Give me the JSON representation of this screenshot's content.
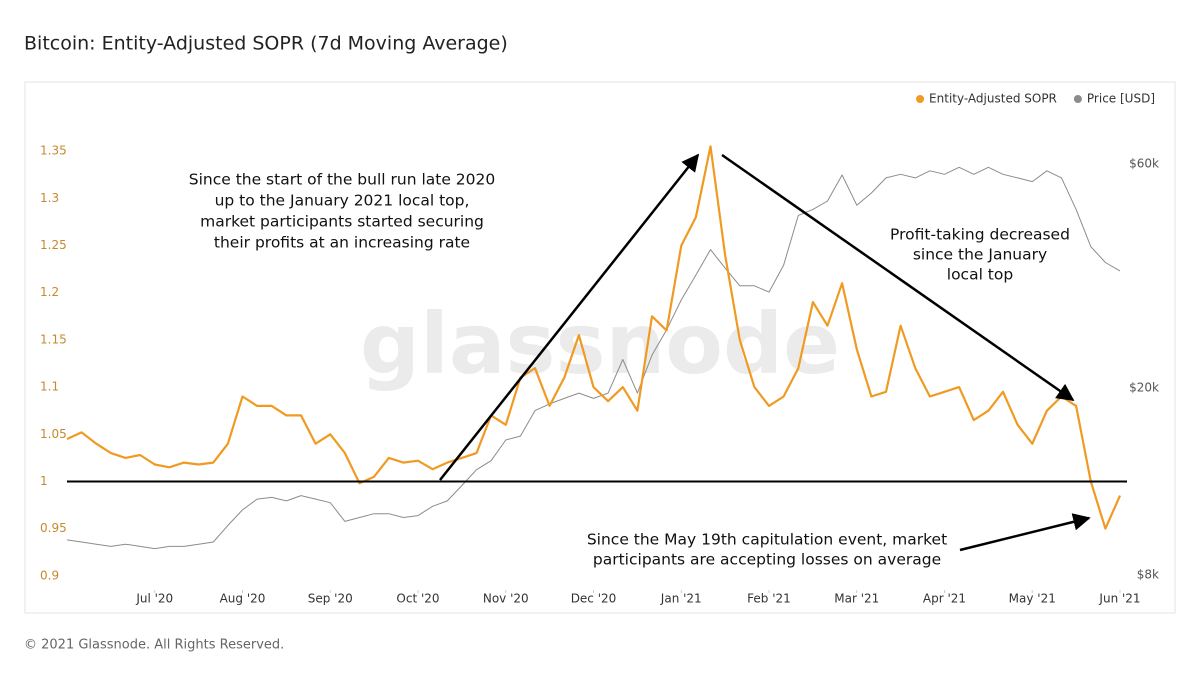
{
  "chart_data": {
    "type": "line",
    "title": "Bitcoin: Entity-Adjusted SOPR (7d Moving Average)",
    "footer": "© 2021 Glassnode. All Rights Reserved.",
    "watermark": "glassnode",
    "categories": [
      null,
      null,
      null,
      null,
      null,
      null,
      "Jul '20",
      null,
      null,
      null,
      null,
      null,
      "Aug '20",
      null,
      null,
      null,
      null,
      null,
      "Sep '20",
      null,
      null,
      null,
      null,
      null,
      "Oct '20",
      null,
      null,
      null,
      null,
      null,
      "Nov '20",
      null,
      null,
      null,
      null,
      null,
      "Dec '20",
      null,
      null,
      null,
      null,
      null,
      "Jan '21",
      null,
      null,
      null,
      null,
      null,
      "Feb '21",
      null,
      null,
      null,
      null,
      null,
      "Mar '21",
      null,
      null,
      null,
      null,
      null,
      "Apr '21",
      null,
      null,
      null,
      null,
      null,
      "May '21",
      null,
      null,
      null,
      null,
      null,
      "Jun '21"
    ],
    "series": [
      {
        "name": "Entity-Adjusted SOPR",
        "color": "#f09a22",
        "axis": "y",
        "values": [
          1.045,
          1.052,
          1.04,
          1.03,
          1.025,
          1.028,
          1.018,
          1.015,
          1.02,
          1.018,
          1.02,
          1.04,
          1.09,
          1.08,
          1.08,
          1.07,
          1.07,
          1.04,
          1.05,
          1.03,
          0.998,
          1.005,
          1.025,
          1.02,
          1.022,
          1.013,
          1.02,
          1.025,
          1.03,
          1.07,
          1.06,
          1.11,
          1.12,
          1.08,
          1.11,
          1.155,
          1.1,
          1.085,
          1.1,
          1.075,
          1.175,
          1.16,
          1.25,
          1.28,
          1.355,
          1.24,
          1.15,
          1.1,
          1.08,
          1.09,
          1.12,
          1.19,
          1.165,
          1.21,
          1.14,
          1.09,
          1.095,
          1.165,
          1.12,
          1.09,
          1.095,
          1.1,
          1.065,
          1.075,
          1.095,
          1.06,
          1.04,
          1.075,
          1.09,
          1.08,
          1.0,
          0.95,
          0.985
        ]
      },
      {
        "name": "Price [USD]",
        "color": "#8c8c8c",
        "axis": "y2",
        "values": [
          9500,
          9400,
          9300,
          9200,
          9300,
          9200,
          9100,
          9200,
          9200,
          9300,
          9400,
          10200,
          11000,
          11600,
          11700,
          11500,
          11800,
          11600,
          11400,
          10400,
          10600,
          10800,
          10800,
          10600,
          10700,
          11200,
          11500,
          12400,
          13400,
          14000,
          15500,
          15800,
          17900,
          18500,
          19000,
          19500,
          19000,
          19500,
          23000,
          19500,
          23500,
          26600,
          30800,
          34800,
          39400,
          36000,
          33000,
          33000,
          32000,
          36500,
          46600,
          48000,
          50000,
          56800,
          49000,
          52000,
          56000,
          57000,
          56000,
          58000,
          57000,
          59000,
          57000,
          59000,
          57000,
          56000,
          55000,
          58000,
          56000,
          48000,
          40000,
          37000,
          35500
        ]
      }
    ],
    "ylim": [
      0.885,
      1.42
    ],
    "yticks": [
      0.9,
      0.95,
      1,
      1.05,
      1.1,
      1.15,
      1.2,
      1.25,
      1.3,
      1.35
    ],
    "y2lim": [
      7430,
      88300
    ],
    "y2log": true,
    "y2ticks": [
      {
        "value": 8000,
        "label": "$8k"
      },
      {
        "value": 20000,
        "label": "$20k"
      },
      {
        "value": 60000,
        "label": "$60k"
      }
    ],
    "hline": 1,
    "legend": "top-right",
    "annotations": [
      {
        "lines": [
          "Since the start of the bull run late 2020",
          "up to the January 2021 local top,",
          "market participants started securing",
          "their profits at an increasing rate"
        ]
      },
      {
        "lines": [
          "Profit-taking decreased",
          "since the January",
          "local top"
        ]
      },
      {
        "lines": [
          "Since the May 19th capitulation event, market",
          "participants are accepting losses on average"
        ]
      }
    ]
  }
}
